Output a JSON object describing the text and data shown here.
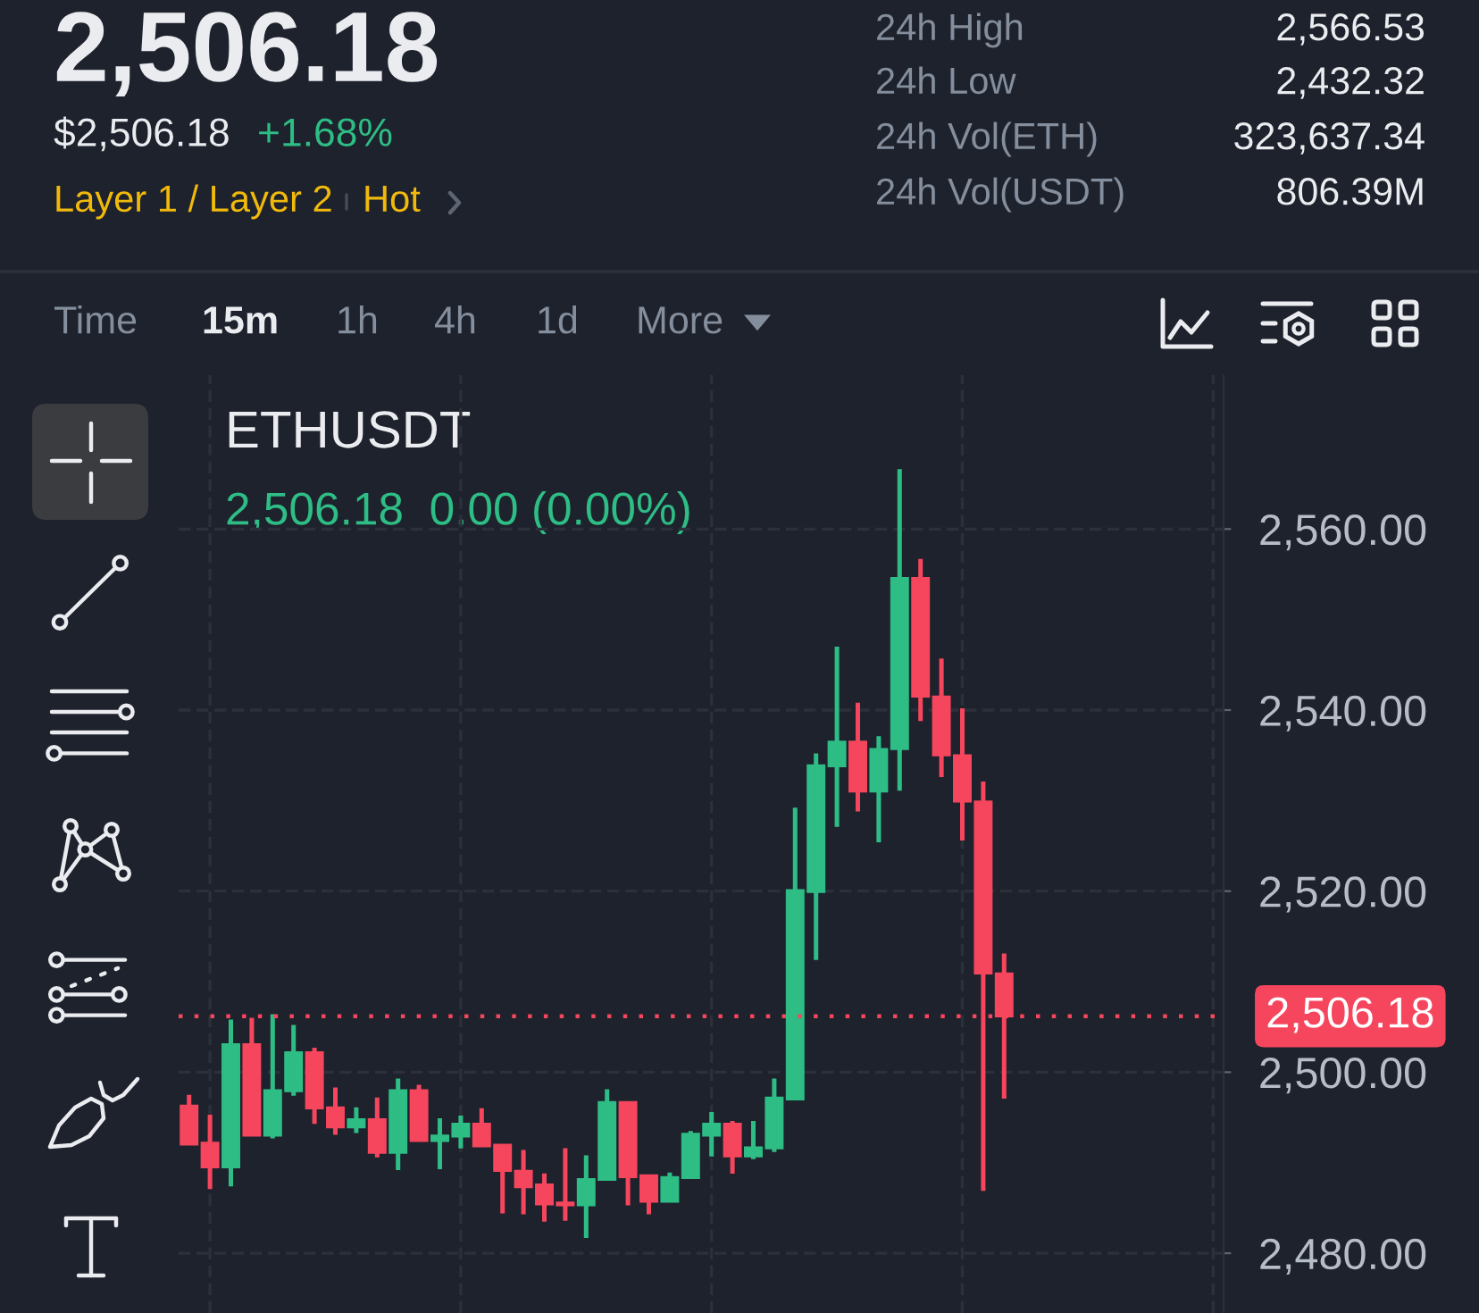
{
  "chart_data": {
    "type": "candlestick",
    "title": "ETHUSDT",
    "subtitle": "2,506.18  0.00 (0.00%)",
    "annotations": [
      "2,506.18",
      "$2,506.18",
      "+1.68%",
      "Layer 1 / Layer 2",
      "Hot",
      "24h High",
      "2,566.53",
      "24h Low",
      "2,432.32",
      "24h Vol(ETH)",
      "323,637.34",
      "24h Vol(USDT)",
      "806.39M",
      "Time",
      "15m",
      "1h",
      "4h",
      "1d",
      "More"
    ],
    "categories": [
      null,
      null,
      null,
      null,
      null,
      null,
      null,
      null,
      null,
      null,
      null,
      null,
      null,
      null,
      null,
      null,
      null,
      null,
      null,
      null,
      null,
      null,
      null,
      null,
      null,
      null,
      null,
      null,
      null,
      null,
      null,
      null,
      null,
      null,
      null,
      null,
      null,
      null,
      null,
      null,
      null,
      null,
      null,
      null,
      null,
      null,
      null,
      null,
      null,
      null
    ],
    "ohlc": [
      [
        2496.3,
        2497.4,
        2492.0,
        2492.0
      ],
      [
        2492.2,
        2495.2,
        2487.2,
        2489.5
      ],
      [
        2489.5,
        2505.7,
        2487.5,
        2503.1
      ],
      [
        2503.1,
        2505.9,
        2493.0,
        2493.0
      ],
      [
        2493.0,
        2506.3,
        2492.8,
        2498.0
      ],
      [
        2497.9,
        2505.1,
        2497.5,
        2502.2
      ],
      [
        2502.2,
        2502.6,
        2494.4,
        2496.0
      ],
      [
        2496.1,
        2498.2,
        2493.2,
        2493.9
      ],
      [
        2493.9,
        2496.0,
        2493.4,
        2494.8
      ],
      [
        2494.8,
        2497.1,
        2490.7,
        2491.1
      ],
      [
        2491.1,
        2499.2,
        2489.3,
        2498.0
      ],
      [
        2498.0,
        2498.5,
        2492.4,
        2492.4
      ],
      [
        2492.4,
        2494.8,
        2489.4,
        2493.0
      ],
      [
        2492.9,
        2495.1,
        2491.7,
        2494.3
      ],
      [
        2494.3,
        2495.9,
        2491.8,
        2491.8
      ],
      [
        2492.0,
        2492.0,
        2484.5,
        2489.1
      ],
      [
        2489.1,
        2491.3,
        2484.4,
        2487.3
      ],
      [
        2487.6,
        2488.7,
        2483.6,
        2485.4
      ],
      [
        2485.6,
        2491.5,
        2483.7,
        2485.3
      ],
      [
        2485.3,
        2490.7,
        2481.8,
        2488.2
      ],
      [
        2488.1,
        2498.0,
        2488.1,
        2496.7
      ],
      [
        2496.7,
        2496.7,
        2485.4,
        2488.4
      ],
      [
        2488.6,
        2488.6,
        2484.4,
        2485.7
      ],
      [
        2485.7,
        2488.8,
        2485.7,
        2488.4
      ],
      [
        2488.3,
        2493.4,
        2488.3,
        2493.2
      ],
      [
        2493.0,
        2495.5,
        2490.8,
        2494.3
      ],
      [
        2494.3,
        2494.5,
        2488.9,
        2490.7
      ],
      [
        2490.7,
        2494.5,
        2490.5,
        2491.7
      ],
      [
        2491.6,
        2499.2,
        2491.3,
        2497.2
      ],
      [
        2497.0,
        2529.1,
        2497.0,
        2520.1
      ],
      [
        2519.9,
        2535.1,
        2512.5,
        2533.9
      ],
      [
        2533.8,
        2546.9,
        2527.2,
        2536.5
      ],
      [
        2536.5,
        2540.7,
        2528.9,
        2531.0
      ],
      [
        2531.0,
        2537.0,
        2525.5,
        2535.7
      ],
      [
        2535.7,
        2566.5,
        2531.2,
        2554.6
      ],
      [
        2554.6,
        2556.6,
        2538.9,
        2541.5
      ],
      [
        2541.5,
        2545.6,
        2532.7,
        2535.0
      ],
      [
        2535.0,
        2540.1,
        2525.7,
        2529.9
      ],
      [
        2529.9,
        2532.0,
        2487.0,
        2510.9
      ],
      [
        2510.9,
        2513.0,
        2497.2,
        2506.18
      ],
      null,
      null,
      null,
      null,
      null,
      null,
      null,
      null,
      null,
      null
    ],
    "colors": [
      "#f6465d",
      "#f6465d",
      "#2ebd85",
      "#f6465d",
      "#2ebd85",
      "#2ebd85",
      "#f6465d",
      "#f6465d",
      "#2ebd85",
      "#f6465d",
      "#2ebd85",
      "#f6465d",
      "#2ebd85",
      "#2ebd85",
      "#f6465d",
      "#f6465d",
      "#f6465d",
      "#f6465d",
      "#f6465d",
      "#2ebd85",
      "#2ebd85",
      "#f6465d",
      "#f6465d",
      "#2ebd85",
      "#2ebd85",
      "#2ebd85",
      "#f6465d",
      "#2ebd85",
      "#2ebd85",
      "#2ebd85",
      "#2ebd85",
      "#2ebd85",
      "#f6465d",
      "#2ebd85",
      "#2ebd85",
      "#f6465d",
      "#f6465d",
      "#f6465d",
      "#f6465d",
      "#f6465d",
      null,
      null,
      null,
      null,
      null,
      null,
      null,
      null,
      null,
      null
    ],
    "ylim": [
      2473.4,
      2577.0
    ],
    "yticks": [
      {
        "value": 2480,
        "label": "2,480.00"
      },
      {
        "value": 2500,
        "label": "2,500.00"
      },
      {
        "value": 2520,
        "label": "2,520.00"
      },
      {
        "value": 2540,
        "label": "2,540.00"
      },
      {
        "value": 2560,
        "label": "2,560.00"
      }
    ],
    "ref_lines": [
      {
        "axis": "y",
        "value": 2506.18,
        "label": "2,506.18",
        "color": "#f6465d",
        "line_style": "dotted"
      }
    ],
    "grid": true,
    "tick_labels": "y"
  }
}
